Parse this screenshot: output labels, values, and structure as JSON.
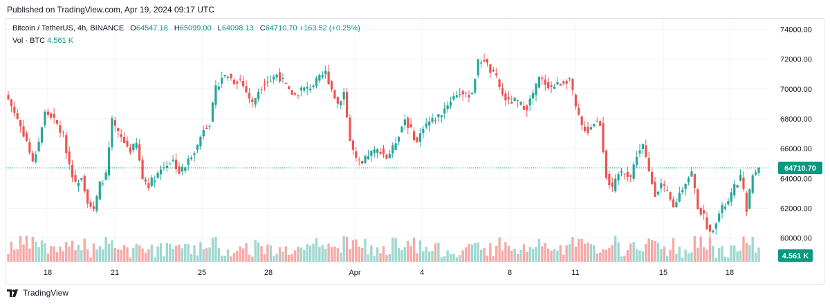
{
  "header": {
    "published": "Published on TradingView.com, Apr 19, 2024 09:17 UTC"
  },
  "legend": {
    "symbol": "Bitcoin / TetherUS, 4h, BINANCE",
    "o_label": "O",
    "o_value": "64547.18",
    "h_label": "H",
    "h_value": "65099.00",
    "l_label": "L",
    "l_value": "64098.13",
    "c_label": "C",
    "c_value": "64710.70",
    "change": "+163.52 (+0.25%)",
    "vol_label": "Vol · BTC",
    "vol_value": "4.561 K"
  },
  "footer": {
    "brand": "TradingView"
  },
  "colors": {
    "up": "#26a69a",
    "down": "#ef5350",
    "vol_up": "#9fd8d0",
    "vol_down": "#f5aaa8",
    "grid": "#f0f3fa",
    "axis_text": "#131722",
    "badge": "#089981"
  },
  "chart_data": {
    "type": "candlestick",
    "title": "Bitcoin / TetherUS, 4h, BINANCE",
    "x_ticks": [
      "18",
      "21",
      "25",
      "28",
      "Apr",
      "4",
      "8",
      "11",
      "15",
      "18"
    ],
    "y_ticks": [
      "74000.00",
      "72000.00",
      "70000.00",
      "68000.00",
      "66000.00",
      "64000.00",
      "62000.00",
      "60000.00"
    ],
    "ylim": [
      58500,
      74300
    ],
    "last_price": 64710.7,
    "last_price_label": "64710.70",
    "last_volume_label": "4.561 K",
    "volume_unit": "BTC",
    "grid": true,
    "close_path_approx": [
      [
        0,
        69300
      ],
      [
        3,
        68000
      ],
      [
        6,
        66500
      ],
      [
        8,
        65000
      ],
      [
        10,
        66500
      ],
      [
        12,
        68400
      ],
      [
        14,
        68200
      ],
      [
        16,
        67600
      ],
      [
        18,
        66800
      ],
      [
        20,
        65000
      ],
      [
        22,
        63600
      ],
      [
        24,
        64200
      ],
      [
        26,
        62500
      ],
      [
        28,
        61800
      ],
      [
        30,
        63600
      ],
      [
        32,
        64200
      ],
      [
        34,
        67800
      ],
      [
        36,
        67000
      ],
      [
        38,
        66400
      ],
      [
        40,
        65900
      ],
      [
        42,
        66300
      ],
      [
        44,
        64000
      ],
      [
        46,
        63600
      ],
      [
        48,
        64100
      ],
      [
        50,
        64600
      ],
      [
        52,
        65000
      ],
      [
        54,
        65200
      ],
      [
        56,
        64400
      ],
      [
        58,
        64800
      ],
      [
        60,
        65600
      ],
      [
        62,
        66200
      ],
      [
        64,
        67400
      ],
      [
        66,
        67700
      ],
      [
        68,
        70000
      ],
      [
        70,
        70800
      ],
      [
        72,
        70900
      ],
      [
        74,
        70500
      ],
      [
        76,
        70600
      ],
      [
        78,
        69800
      ],
      [
        80,
        69000
      ],
      [
        82,
        69900
      ],
      [
        84,
        70500
      ],
      [
        86,
        70600
      ],
      [
        88,
        71000
      ],
      [
        90,
        70500
      ],
      [
        92,
        69800
      ],
      [
        94,
        69600
      ],
      [
        96,
        70000
      ],
      [
        98,
        70000
      ],
      [
        100,
        70300
      ],
      [
        102,
        70700
      ],
      [
        104,
        71100
      ],
      [
        106,
        70000
      ],
      [
        108,
        69000
      ],
      [
        110,
        69800
      ],
      [
        112,
        66500
      ],
      [
        114,
        65200
      ],
      [
        116,
        64900
      ],
      [
        118,
        65600
      ],
      [
        120,
        65800
      ],
      [
        122,
        65900
      ],
      [
        124,
        65400
      ],
      [
        126,
        66000
      ],
      [
        128,
        67000
      ],
      [
        130,
        68000
      ],
      [
        132,
        67200
      ],
      [
        134,
        66400
      ],
      [
        136,
        67500
      ],
      [
        138,
        67800
      ],
      [
        140,
        68000
      ],
      [
        142,
        68400
      ],
      [
        144,
        69000
      ],
      [
        146,
        69500
      ],
      [
        148,
        69800
      ],
      [
        150,
        69500
      ],
      [
        152,
        69800
      ],
      [
        154,
        71800
      ],
      [
        156,
        72000
      ],
      [
        158,
        71200
      ],
      [
        160,
        70700
      ],
      [
        162,
        69600
      ],
      [
        164,
        69100
      ],
      [
        166,
        69200
      ],
      [
        168,
        68900
      ],
      [
        170,
        68800
      ],
      [
        172,
        69700
      ],
      [
        174,
        70700
      ],
      [
        176,
        70400
      ],
      [
        178,
        70100
      ],
      [
        180,
        70300
      ],
      [
        182,
        70500
      ],
      [
        184,
        70700
      ],
      [
        186,
        68700
      ],
      [
        188,
        67500
      ],
      [
        190,
        67200
      ],
      [
        192,
        67800
      ],
      [
        194,
        67700
      ],
      [
        196,
        64200
      ],
      [
        198,
        63200
      ],
      [
        200,
        64300
      ],
      [
        202,
        64500
      ],
      [
        204,
        64100
      ],
      [
        206,
        65600
      ],
      [
        208,
        66200
      ],
      [
        210,
        64400
      ],
      [
        212,
        63000
      ],
      [
        214,
        63600
      ],
      [
        216,
        63000
      ],
      [
        218,
        62000
      ],
      [
        220,
        63000
      ],
      [
        222,
        63800
      ],
      [
        224,
        64400
      ],
      [
        226,
        62100
      ],
      [
        228,
        61400
      ],
      [
        230,
        60300
      ],
      [
        232,
        61200
      ],
      [
        234,
        62000
      ],
      [
        236,
        62400
      ],
      [
        238,
        63400
      ],
      [
        240,
        64100
      ],
      [
        242,
        62000
      ],
      [
        244,
        64200
      ],
      [
        246,
        64710
      ]
    ]
  }
}
